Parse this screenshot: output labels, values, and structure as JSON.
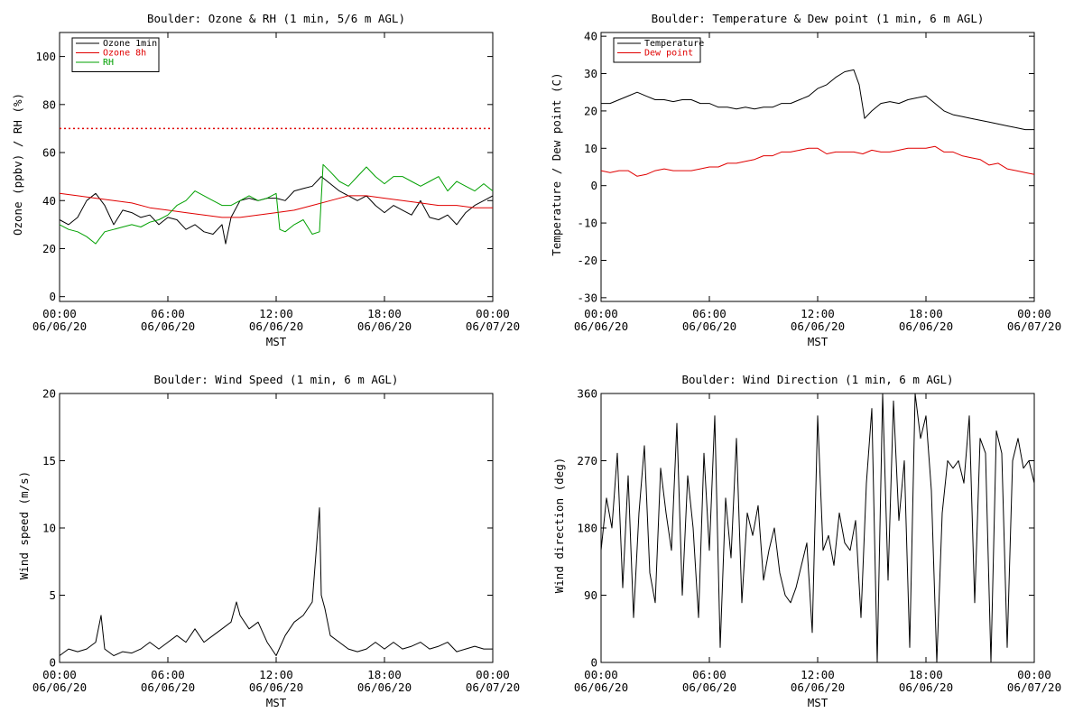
{
  "chart_data": [
    {
      "type": "line",
      "title": "Boulder: Ozone & RH (1 min, 5/6 m AGL)",
      "xlabel": "MST",
      "ylabel": "Ozone (ppbv) / RH (%)",
      "x_unit": "hours since 00:00 06/06/20",
      "xlim": [
        0,
        24
      ],
      "ylim": [
        -2,
        110
      ],
      "yticks": [
        "0",
        "20",
        "40",
        "60",
        "80",
        "100"
      ],
      "xticks": [
        {
          "time": "00:00",
          "date": "06/06/20"
        },
        {
          "time": "06:00",
          "date": "06/06/20"
        },
        {
          "time": "12:00",
          "date": "06/06/20"
        },
        {
          "time": "18:00",
          "date": "06/06/20"
        },
        {
          "time": "00:00",
          "date": "06/07/20"
        }
      ],
      "legend_position": "top-left",
      "reference_line": {
        "y": 70,
        "color": "#e00000",
        "style": "dotted"
      },
      "series": [
        {
          "name": "Ozone 1min",
          "color": "#000000",
          "x": [
            0,
            0.5,
            1,
            1.5,
            2,
            2.5,
            3,
            3.5,
            4,
            4.5,
            5,
            5.5,
            6,
            6.5,
            7,
            7.5,
            8,
            8.5,
            9,
            9.2,
            9.5,
            10,
            10.5,
            11,
            11.5,
            12,
            12.5,
            13,
            13.5,
            14,
            14.5,
            15,
            15.5,
            16,
            16.5,
            17,
            17.5,
            18,
            18.5,
            19,
            19.5,
            20,
            20.5,
            21,
            21.5,
            22,
            22.5,
            23,
            23.5,
            24
          ],
          "y": [
            32,
            30,
            33,
            40,
            43,
            38,
            30,
            36,
            35,
            33,
            34,
            30,
            33,
            32,
            28,
            30,
            27,
            26,
            30,
            22,
            33,
            40,
            41,
            40,
            41,
            41,
            40,
            44,
            45,
            46,
            50,
            47,
            44,
            42,
            40,
            42,
            38,
            35,
            38,
            36,
            34,
            40,
            33,
            32,
            34,
            30,
            35,
            38,
            40,
            42
          ]
        },
        {
          "name": "Ozone 8h",
          "color": "#e00000",
          "x": [
            0,
            1,
            2,
            3,
            4,
            5,
            6,
            7,
            8,
            9,
            10,
            11,
            12,
            13,
            14,
            15,
            16,
            17,
            18,
            19,
            20,
            21,
            22,
            23,
            24
          ],
          "y": [
            43,
            42,
            41,
            40,
            39,
            37,
            36,
            35,
            34,
            33,
            33,
            34,
            35,
            36,
            38,
            40,
            42,
            42,
            41,
            40,
            39,
            38,
            38,
            37,
            37
          ]
        },
        {
          "name": "RH",
          "color": "#00a000",
          "x": [
            0,
            0.5,
            1,
            1.5,
            2,
            2.5,
            3,
            3.5,
            4,
            4.5,
            5,
            5.5,
            6,
            6.5,
            7,
            7.5,
            8,
            8.5,
            9,
            9.5,
            10,
            10.5,
            11,
            11.5,
            12,
            12.2,
            12.5,
            13,
            13.5,
            14,
            14.4,
            14.6,
            15,
            15.5,
            16,
            16.5,
            17,
            17.5,
            18,
            18.5,
            19,
            19.5,
            20,
            20.5,
            21,
            21.5,
            22,
            22.5,
            23,
            23.5,
            24
          ],
          "y": [
            30,
            28,
            27,
            25,
            22,
            27,
            28,
            29,
            30,
            29,
            31,
            32,
            34,
            38,
            40,
            44,
            42,
            40,
            38,
            38,
            40,
            42,
            40,
            41,
            43,
            28,
            27,
            30,
            32,
            26,
            27,
            55,
            52,
            48,
            46,
            50,
            54,
            50,
            47,
            50,
            50,
            48,
            46,
            48,
            50,
            44,
            48,
            46,
            44,
            47,
            44
          ]
        }
      ]
    },
    {
      "type": "line",
      "title": "Boulder: Temperature & Dew point (1 min, 6 m AGL)",
      "xlabel": "MST",
      "ylabel": "Temperature / Dew point (C)",
      "x_unit": "hours since 00:00 06/06/20",
      "xlim": [
        0,
        24
      ],
      "ylim": [
        -31,
        41
      ],
      "yticks": [
        "-30",
        "-20",
        "-10",
        "0",
        "10",
        "20",
        "30",
        "40"
      ],
      "xticks": [
        {
          "time": "00:00",
          "date": "06/06/20"
        },
        {
          "time": "06:00",
          "date": "06/06/20"
        },
        {
          "time": "12:00",
          "date": "06/06/20"
        },
        {
          "time": "18:00",
          "date": "06/06/20"
        },
        {
          "time": "00:00",
          "date": "06/07/20"
        }
      ],
      "legend_position": "top-left",
      "series": [
        {
          "name": "Temperature",
          "color": "#000000",
          "x": [
            0,
            0.5,
            1,
            1.5,
            2,
            2.5,
            3,
            3.5,
            4,
            4.5,
            5,
            5.5,
            6,
            6.5,
            7,
            7.5,
            8,
            8.5,
            9,
            9.5,
            10,
            10.5,
            11,
            11.5,
            12,
            12.5,
            13,
            13.5,
            14,
            14.3,
            14.6,
            15,
            15.5,
            16,
            16.5,
            17,
            17.5,
            18,
            18.5,
            19,
            19.5,
            20,
            20.5,
            21,
            21.5,
            22,
            22.5,
            23,
            23.5,
            24
          ],
          "y": [
            22,
            22,
            23,
            24,
            25,
            24,
            23,
            23,
            22.5,
            23,
            23,
            22,
            22,
            21,
            21,
            20.5,
            21,
            20.5,
            21,
            21,
            22,
            22,
            23,
            24,
            26,
            27,
            29,
            30.5,
            31,
            27,
            18,
            20,
            22,
            22.5,
            22,
            23,
            23.5,
            24,
            22,
            20,
            19,
            18.5,
            18,
            17.5,
            17,
            16.5,
            16,
            15.5,
            15,
            15
          ]
        },
        {
          "name": "Dew point",
          "color": "#e00000",
          "x": [
            0,
            0.5,
            1,
            1.5,
            2,
            2.5,
            3,
            3.5,
            4,
            4.5,
            5,
            5.5,
            6,
            6.5,
            7,
            7.5,
            8,
            8.5,
            9,
            9.5,
            10,
            10.5,
            11,
            11.5,
            12,
            12.5,
            13,
            13.5,
            14,
            14.5,
            15,
            15.5,
            16,
            16.5,
            17,
            17.5,
            18,
            18.5,
            19,
            19.5,
            20,
            20.5,
            21,
            21.5,
            22,
            22.5,
            23,
            23.5,
            24
          ],
          "y": [
            4,
            3.5,
            4,
            4,
            2.5,
            3,
            4,
            4.5,
            4,
            4,
            4,
            4.5,
            5,
            5,
            6,
            6,
            6.5,
            7,
            8,
            8,
            9,
            9,
            9.5,
            10,
            10,
            8.5,
            9,
            9,
            9,
            8.5,
            9.5,
            9,
            9,
            9.5,
            10,
            10,
            10,
            10.5,
            9,
            9,
            8,
            7.5,
            7,
            5.5,
            6,
            4.5,
            4,
            3.5,
            3
          ]
        }
      ]
    },
    {
      "type": "line",
      "title": "Boulder: Wind Speed (1 min, 6 m AGL)",
      "xlabel": "MST",
      "ylabel": "Wind speed (m/s)",
      "x_unit": "hours since 00:00 06/06/20",
      "xlim": [
        0,
        24
      ],
      "ylim": [
        0,
        20
      ],
      "yticks": [
        "0",
        "5",
        "10",
        "15",
        "20"
      ],
      "xticks": [
        {
          "time": "00:00",
          "date": "06/06/20"
        },
        {
          "time": "06:00",
          "date": "06/06/20"
        },
        {
          "time": "12:00",
          "date": "06/06/20"
        },
        {
          "time": "18:00",
          "date": "06/06/20"
        },
        {
          "time": "00:00",
          "date": "06/07/20"
        }
      ],
      "series": [
        {
          "name": "",
          "color": "#000000",
          "x": [
            0,
            0.5,
            1,
            1.5,
            2,
            2.3,
            2.5,
            3,
            3.5,
            4,
            4.5,
            5,
            5.5,
            6,
            6.5,
            7,
            7.5,
            8,
            8.5,
            9,
            9.5,
            9.8,
            10,
            10.5,
            11,
            11.5,
            12,
            12.5,
            13,
            13.5,
            14,
            14.4,
            14.5,
            14.7,
            15,
            15.5,
            16,
            16.5,
            17,
            17.5,
            18,
            18.5,
            19,
            19.5,
            20,
            20.5,
            21,
            21.5,
            22,
            22.5,
            23,
            23.5,
            24
          ],
          "y": [
            0.5,
            1,
            0.8,
            1,
            1.5,
            3.5,
            1,
            0.5,
            0.8,
            0.7,
            1,
            1.5,
            1,
            1.5,
            2,
            1.5,
            2.5,
            1.5,
            2,
            2.5,
            3,
            4.5,
            3.5,
            2.5,
            3,
            1.5,
            0.5,
            2,
            3,
            3.5,
            4.5,
            11.5,
            5,
            4,
            2,
            1.5,
            1,
            0.8,
            1,
            1.5,
            1,
            1.5,
            1,
            1.2,
            1.5,
            1,
            1.2,
            1.5,
            0.8,
            1,
            1.2,
            1,
            1
          ]
        }
      ]
    },
    {
      "type": "line",
      "title": "Boulder: Wind Direction (1 min, 6 m AGL)",
      "xlabel": "MST",
      "ylabel": "Wind direction (deg)",
      "x_unit": "hours since 00:00 06/06/20",
      "xlim": [
        0,
        24
      ],
      "ylim": [
        0,
        360
      ],
      "yticks": [
        "0",
        "90",
        "180",
        "270",
        "360"
      ],
      "xticks": [
        {
          "time": "00:00",
          "date": "06/06/20"
        },
        {
          "time": "06:00",
          "date": "06/06/20"
        },
        {
          "time": "12:00",
          "date": "06/06/20"
        },
        {
          "time": "18:00",
          "date": "06/06/20"
        },
        {
          "time": "00:00",
          "date": "06/07/20"
        }
      ],
      "series": [
        {
          "name": "",
          "color": "#000000",
          "x": [
            0,
            0.3,
            0.6,
            0.9,
            1.2,
            1.5,
            1.8,
            2.1,
            2.4,
            2.7,
            3,
            3.3,
            3.6,
            3.9,
            4.2,
            4.5,
            4.8,
            5.1,
            5.4,
            5.7,
            6,
            6.3,
            6.6,
            6.9,
            7.2,
            7.5,
            7.8,
            8.1,
            8.4,
            8.7,
            9,
            9.3,
            9.6,
            9.9,
            10.2,
            10.5,
            10.8,
            11.1,
            11.4,
            11.7,
            12,
            12.3,
            12.6,
            12.9,
            13.2,
            13.5,
            13.8,
            14.1,
            14.4,
            14.7,
            15,
            15.3,
            15.6,
            15.9,
            16.2,
            16.5,
            16.8,
            17.1,
            17.4,
            17.7,
            18,
            18.3,
            18.6,
            18.9,
            19.2,
            19.5,
            19.8,
            20.1,
            20.4,
            20.7,
            21,
            21.3,
            21.6,
            21.9,
            22.2,
            22.5,
            22.8,
            23.1,
            23.4,
            23.7,
            24
          ],
          "y": [
            150,
            220,
            180,
            280,
            100,
            250,
            60,
            200,
            290,
            120,
            80,
            260,
            200,
            150,
            320,
            90,
            250,
            180,
            60,
            280,
            150,
            330,
            20,
            220,
            140,
            300,
            80,
            200,
            170,
            210,
            110,
            150,
            180,
            120,
            90,
            80,
            100,
            130,
            160,
            40,
            330,
            150,
            170,
            130,
            200,
            160,
            150,
            190,
            60,
            240,
            340,
            0,
            360,
            110,
            350,
            190,
            270,
            20,
            360,
            300,
            330,
            230,
            0,
            200,
            270,
            260,
            270,
            240,
            330,
            80,
            300,
            280,
            0,
            310,
            280,
            20,
            270,
            300,
            260,
            270,
            240
          ]
        }
      ]
    }
  ]
}
